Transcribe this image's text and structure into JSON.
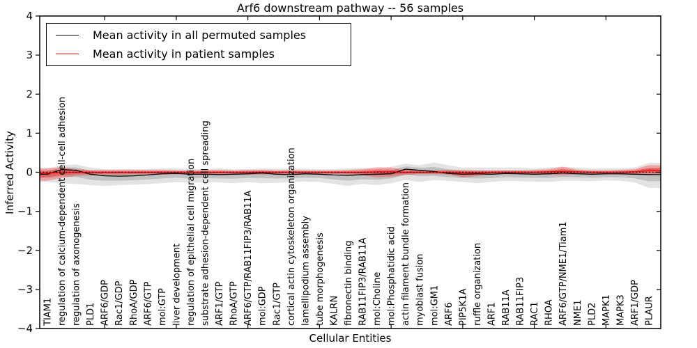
{
  "title": "Arf6 downstream pathway -- 56 samples",
  "axes": {
    "xlabel": "Cellular Entities",
    "ylabel": "Inferred Activity"
  },
  "legend": {
    "items": [
      {
        "label": "Mean activity in all permuted samples",
        "color": "#000000"
      },
      {
        "label": "Mean activity in patient samples",
        "color": "#ff0000"
      }
    ]
  },
  "chart_data": {
    "type": "line",
    "title": "Arf6 downstream pathway -- 56 samples",
    "xlabel": "Cellular Entities",
    "ylabel": "Inferred Activity",
    "ylim": [
      -4,
      4
    ],
    "yticks": [
      4,
      3,
      2,
      1,
      0,
      -1,
      -2,
      -3,
      -4
    ],
    "grid": false,
    "legend_position": "upper left",
    "zero_line": {
      "y": 0,
      "style": "dotted",
      "color": "#000000"
    },
    "band_note": "each series drawn with outer and inner (half-width) translucent bands",
    "categories": [
      "TIAM1",
      "regulation of calcium-dependent cell-cell adhesion",
      "regulation of axonogenesis",
      "PLD1",
      "ARF6/GDP",
      "Rac1/GDP",
      "RhoA/GDP",
      "ARF6/GTP",
      "mol:GTP",
      "liver development",
      "regulation of epithelial cell migration",
      "substrate adhesion-dependent cell spreading",
      "ARF1/GTP",
      "RhoA/GTP",
      "ARF6/GTP/RAB11FIP3/RAB11A",
      "mol:GDP",
      "Rac1/GTP",
      "cortical actin cytoskeleton organization",
      "lamellipodium assembly",
      "tube morphogenesis",
      "KALRN",
      "fibronectin binding",
      "RAB11FIP3/RAB11A",
      "mol:Choline",
      "mol:Phosphatidic acid",
      "actin filament bundle formation",
      "myoblast fusion",
      "mol:GM1",
      "ARF6",
      "PIP5K1A",
      "ruffle organization",
      "ARF1",
      "RAB11A",
      "RAB11FIP3",
      "RAC1",
      "RHOA",
      "ARF6/GTP/NME1/Tiam1",
      "NME1",
      "PLD2",
      "MAPK1",
      "MAPK3",
      "ARF1/GDP",
      "PLAUR"
    ],
    "series": [
      {
        "name": "Mean activity in all permuted samples",
        "color": "#000000",
        "band_color": "#000000",
        "values": [
          -0.05,
          0.07,
          0.05,
          -0.05,
          -0.09,
          -0.1,
          -0.09,
          -0.07,
          -0.04,
          -0.03,
          -0.05,
          -0.05,
          -0.06,
          -0.05,
          -0.04,
          -0.02,
          -0.05,
          -0.06,
          -0.04,
          -0.05,
          -0.07,
          -0.08,
          -0.06,
          -0.05,
          -0.04,
          0.08,
          0.05,
          0.02,
          -0.03,
          -0.05,
          -0.04,
          -0.05,
          -0.03,
          -0.04,
          -0.05,
          -0.04,
          -0.02,
          -0.04,
          -0.05,
          -0.04,
          -0.04,
          -0.05,
          -0.06
        ],
        "band_upper": [
          0.1,
          0.18,
          0.2,
          0.12,
          0.08,
          0.08,
          0.08,
          0.08,
          0.1,
          0.1,
          0.08,
          0.08,
          0.1,
          0.08,
          0.08,
          0.1,
          0.09,
          0.1,
          0.09,
          0.08,
          0.08,
          0.1,
          0.1,
          0.09,
          0.14,
          0.22,
          0.18,
          0.25,
          0.18,
          0.12,
          0.12,
          0.12,
          0.12,
          0.12,
          0.1,
          0.12,
          0.14,
          0.12,
          0.1,
          0.1,
          0.1,
          0.12,
          0.24
        ],
        "band_lower": [
          -0.25,
          -0.28,
          -0.3,
          -0.33,
          -0.35,
          -0.33,
          -0.32,
          -0.3,
          -0.28,
          -0.25,
          -0.27,
          -0.25,
          -0.26,
          -0.28,
          -0.25,
          -0.28,
          -0.27,
          -0.25,
          -0.24,
          -0.25,
          -0.3,
          -0.35,
          -0.3,
          -0.33,
          -0.28,
          -0.2,
          -0.25,
          -0.2,
          -0.22,
          -0.25,
          -0.28,
          -0.25,
          -0.22,
          -0.23,
          -0.24,
          -0.25,
          -0.22,
          -0.22,
          -0.23,
          -0.21,
          -0.22,
          -0.26,
          -0.4
        ]
      },
      {
        "name": "Mean activity in patient samples",
        "color": "#ff0000",
        "band_color": "#ff0000",
        "values": [
          -0.02,
          0,
          0,
          0,
          0,
          0,
          0,
          0,
          0,
          0,
          0,
          0,
          0,
          0,
          0,
          0,
          0,
          0,
          0,
          0,
          0,
          0,
          0,
          0.01,
          0.01,
          0,
          0,
          0,
          0,
          -0.01,
          -0.01,
          0,
          0,
          0,
          0,
          0.01,
          0.02,
          0.01,
          0,
          0,
          0,
          0.01,
          0.04
        ],
        "band_upper": [
          0.1,
          0.13,
          0.08,
          0.06,
          0.06,
          0.06,
          0.06,
          0.06,
          0.06,
          0.05,
          0.05,
          0.06,
          0.06,
          0.05,
          0.06,
          0.06,
          0.05,
          0.06,
          0.05,
          0.05,
          0.05,
          0.06,
          0.08,
          0.13,
          0.12,
          0.07,
          0.05,
          0.05,
          0.06,
          0.06,
          0.05,
          0.05,
          0.05,
          0.05,
          0.06,
          0.08,
          0.14,
          0.07,
          0.05,
          0.05,
          0.06,
          0.08,
          0.18
        ],
        "band_lower": [
          -0.22,
          -0.15,
          -0.09,
          -0.08,
          -0.07,
          -0.07,
          -0.06,
          -0.06,
          -0.06,
          -0.05,
          -0.06,
          -0.06,
          -0.06,
          -0.05,
          -0.06,
          -0.06,
          -0.05,
          -0.06,
          -0.05,
          -0.05,
          -0.05,
          -0.06,
          -0.08,
          -0.13,
          -0.12,
          -0.07,
          -0.05,
          -0.05,
          -0.06,
          -0.13,
          -0.1,
          -0.05,
          -0.05,
          -0.05,
          -0.05,
          -0.06,
          -0.08,
          -0.05,
          -0.05,
          -0.05,
          -0.05,
          -0.05,
          -0.07
        ]
      }
    ]
  }
}
